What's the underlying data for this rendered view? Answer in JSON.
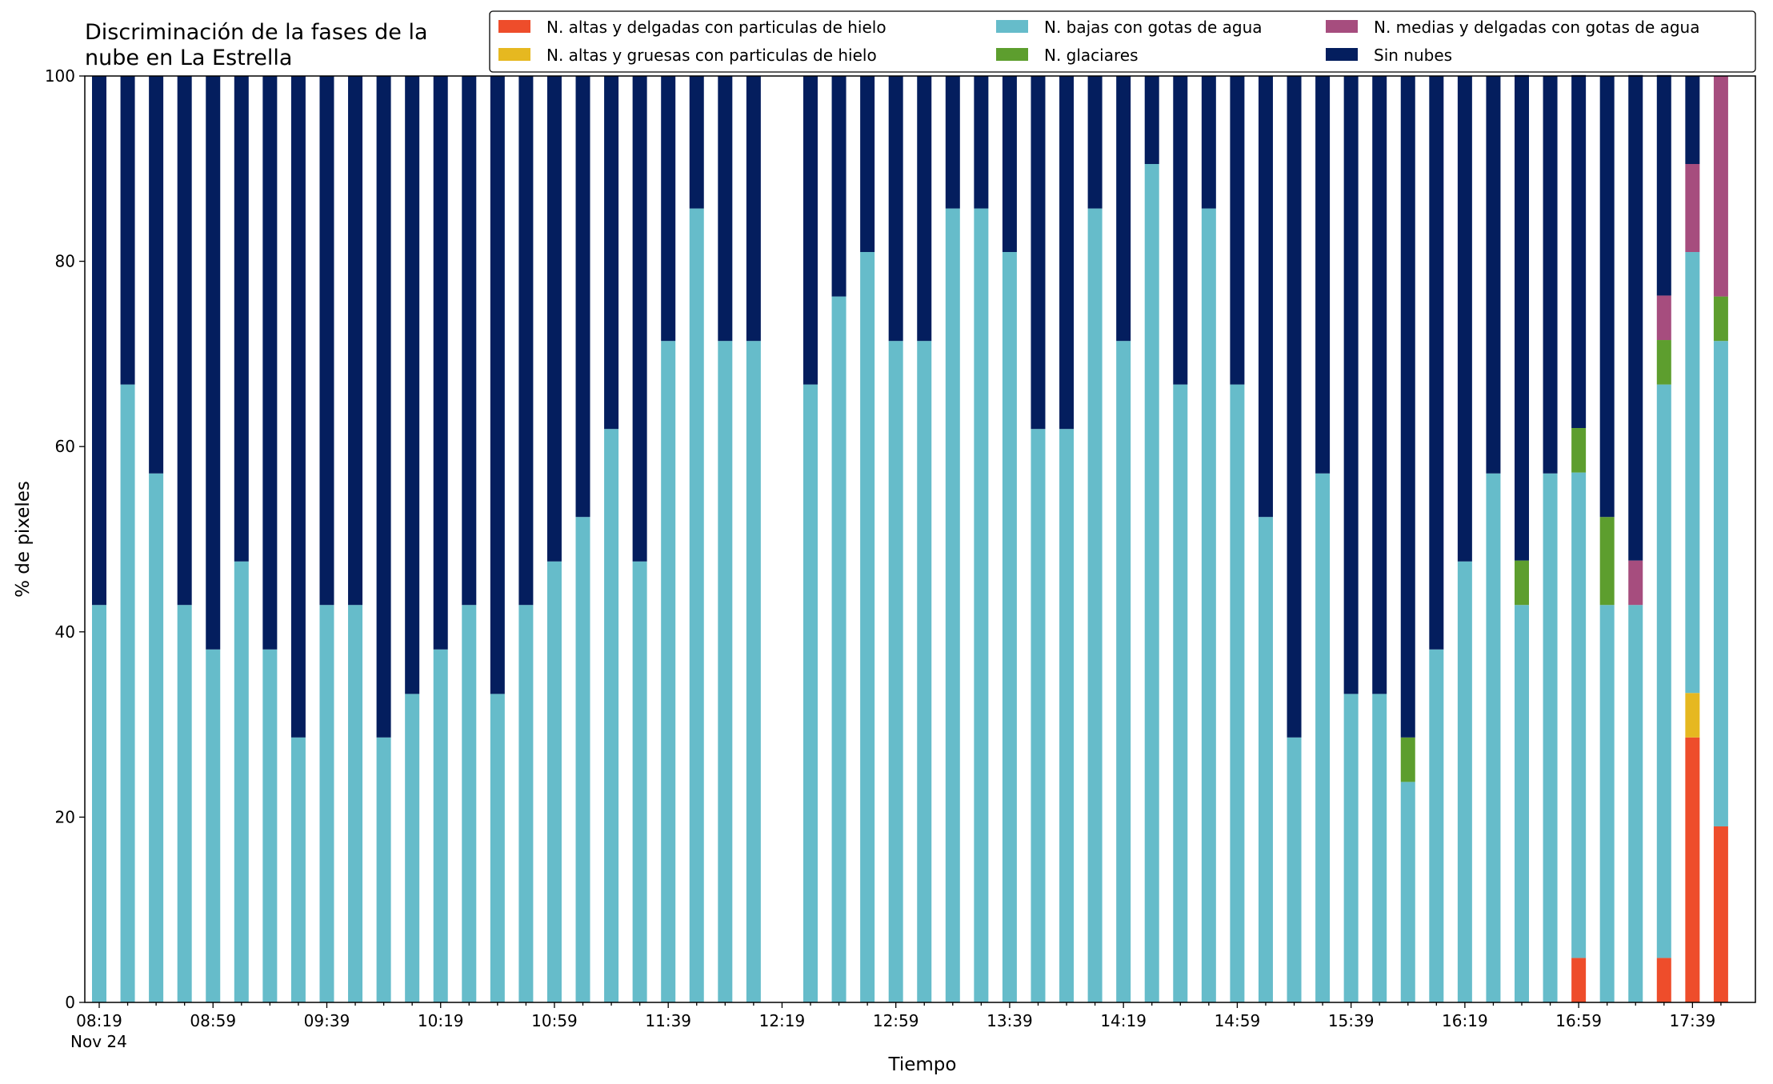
{
  "chart_data": {
    "type": "bar",
    "stacked": true,
    "title": "Discriminación de la fases de la\nnube en La Estrella",
    "xlabel": "Tiempo",
    "ylabel": "% de pixeles",
    "ylim": [
      0,
      100
    ],
    "yticks": [
      0,
      20,
      40,
      60,
      80,
      100
    ],
    "grid": false,
    "legend_position": "top-right",
    "x_date_label": "Nov 24",
    "x": [
      "08:19",
      "08:29",
      "08:39",
      "08:49",
      "08:59",
      "09:09",
      "09:19",
      "09:29",
      "09:39",
      "09:49",
      "09:59",
      "10:09",
      "10:19",
      "10:29",
      "10:39",
      "10:49",
      "10:59",
      "11:09",
      "11:19",
      "11:29",
      "11:39",
      "11:49",
      "11:59",
      "12:09",
      "12:19",
      "12:29",
      "12:39",
      "12:49",
      "12:59",
      "13:09",
      "13:19",
      "13:29",
      "13:39",
      "13:49",
      "13:59",
      "14:09",
      "14:19",
      "14:29",
      "14:39",
      "14:49",
      "14:59",
      "15:09",
      "15:19",
      "15:29",
      "15:39",
      "15:49",
      "15:59",
      "16:09",
      "16:19",
      "16:29",
      "16:39",
      "16:49",
      "16:59",
      "17:09",
      "17:19",
      "17:29",
      "17:39",
      "17:49"
    ],
    "xtick_labels": [
      "08:19",
      "08:59",
      "09:39",
      "10:19",
      "10:59",
      "11:39",
      "12:19",
      "12:59",
      "13:39",
      "14:19",
      "14:59",
      "15:39",
      "16:19",
      "16:59",
      "17:39"
    ],
    "series": [
      {
        "name": "N. altas y delgadas con particulas de hielo",
        "color": "#ee4d2b",
        "values": [
          0,
          0,
          0,
          0,
          0,
          0,
          0,
          0,
          0,
          0,
          0,
          0,
          0,
          0,
          0,
          0,
          0,
          0,
          0,
          0,
          0,
          0,
          0,
          0,
          0,
          0,
          0,
          0,
          0,
          0,
          0,
          0,
          0,
          0,
          0,
          0,
          0,
          0,
          0,
          0,
          0,
          0,
          0,
          0,
          0,
          0,
          0,
          0,
          0,
          0,
          0,
          0,
          4.8,
          0,
          0,
          4.8,
          28.6,
          19
        ]
      },
      {
        "name": "N. altas y gruesas con particulas de hielo",
        "color": "#e6b820",
        "values": [
          0,
          0,
          0,
          0,
          0,
          0,
          0,
          0,
          0,
          0,
          0,
          0,
          0,
          0,
          0,
          0,
          0,
          0,
          0,
          0,
          0,
          0,
          0,
          0,
          0,
          0,
          0,
          0,
          0,
          0,
          0,
          0,
          0,
          0,
          0,
          0,
          0,
          0,
          0,
          0,
          0,
          0,
          0,
          0,
          0,
          0,
          0,
          0,
          0,
          0,
          0,
          0,
          0,
          0,
          0,
          0,
          4.8,
          0
        ]
      },
      {
        "name": "N. bajas con gotas de agua",
        "color": "#66bcca",
        "values": [
          42.9,
          66.7,
          57.1,
          42.9,
          38.1,
          47.6,
          38.1,
          28.6,
          42.9,
          42.9,
          28.6,
          33.3,
          38.1,
          42.9,
          33.3,
          42.9,
          47.6,
          52.4,
          61.9,
          47.6,
          71.4,
          85.7,
          71.4,
          71.4,
          0,
          66.7,
          76.2,
          81,
          71.4,
          71.4,
          85.7,
          85.7,
          81,
          61.9,
          61.9,
          85.7,
          71.4,
          90.5,
          66.7,
          85.7,
          66.7,
          52.4,
          28.6,
          57.1,
          33.3,
          33.3,
          23.8,
          38.1,
          47.6,
          57.1,
          42.9,
          57.1,
          52.4,
          42.9,
          42.9,
          61.9,
          47.6,
          52.4
        ]
      },
      {
        "name": "N. glaciares",
        "color": "#5d9e2e",
        "values": [
          0,
          0,
          0,
          0,
          0,
          0,
          0,
          0,
          0,
          0,
          0,
          0,
          0,
          0,
          0,
          0,
          0,
          0,
          0,
          0,
          0,
          0,
          0,
          0,
          0,
          0,
          0,
          0,
          0,
          0,
          0,
          0,
          0,
          0,
          0,
          0,
          0,
          0,
          0,
          0,
          0,
          0,
          0,
          0,
          0,
          0,
          4.8,
          0,
          0,
          0,
          4.8,
          0,
          4.8,
          9.5,
          0,
          4.8,
          0,
          4.8
        ]
      },
      {
        "name": "N. medias y delgadas con gotas de agua",
        "color": "#a64d7e",
        "values": [
          0,
          0,
          0,
          0,
          0,
          0,
          0,
          0,
          0,
          0,
          0,
          0,
          0,
          0,
          0,
          0,
          0,
          0,
          0,
          0,
          0,
          0,
          0,
          0,
          0,
          0,
          0,
          0,
          0,
          0,
          0,
          0,
          0,
          0,
          0,
          0,
          0,
          0,
          0,
          0,
          0,
          0,
          0,
          0,
          0,
          0,
          0,
          0,
          0,
          0,
          0,
          0,
          0,
          0,
          4.8,
          4.8,
          9.5,
          23.8
        ]
      },
      {
        "name": "Sin nubes",
        "color": "#041e5e",
        "values": [
          57.1,
          33.3,
          42.9,
          57.1,
          61.9,
          52.4,
          61.9,
          71.4,
          57.1,
          57.1,
          71.4,
          66.7,
          61.9,
          57.1,
          66.7,
          57.1,
          52.4,
          47.6,
          38.1,
          52.4,
          28.6,
          14.3,
          28.6,
          28.6,
          0,
          33.3,
          23.8,
          19,
          28.6,
          28.6,
          14.3,
          14.3,
          19,
          38.1,
          38.1,
          14.3,
          28.6,
          9.5,
          33.3,
          14.3,
          33.3,
          47.6,
          71.4,
          42.9,
          66.7,
          66.7,
          71.4,
          61.9,
          52.4,
          42.9,
          52.4,
          42.9,
          38.1,
          47.6,
          52.4,
          23.8,
          9.5,
          0
        ]
      }
    ]
  }
}
